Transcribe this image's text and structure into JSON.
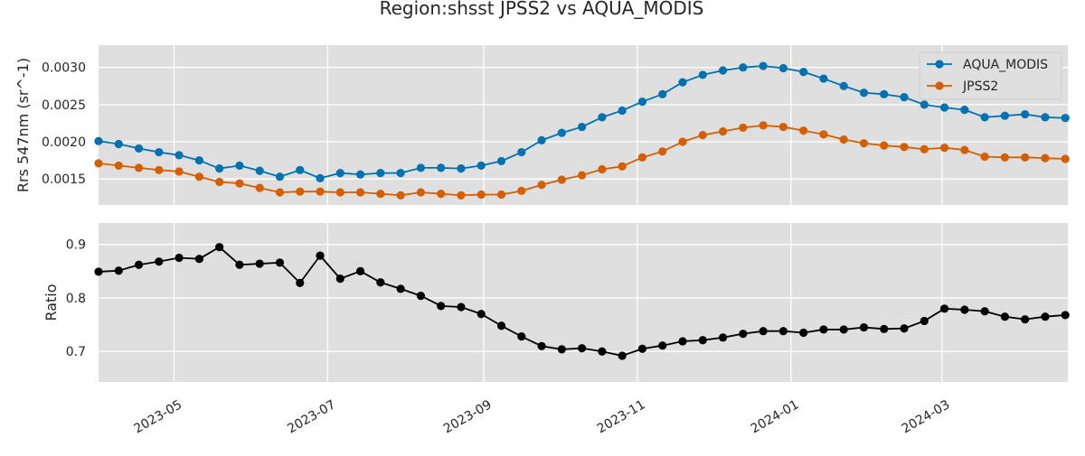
{
  "chart_data": {
    "title": "Region:shsst JPSS2 vs AQUA_MODIS",
    "grid": true,
    "shared_x": {
      "type": "date",
      "range": [
        "2023-04-01",
        "2024-04-20"
      ],
      "tick_labels": [
        "2023-05",
        "2023-07",
        "2023-09",
        "2023-11",
        "2024-01",
        "2024-03"
      ],
      "tick_dates": [
        "2023-05-01",
        "2023-07-01",
        "2023-09-01",
        "2023-11-01",
        "2024-01-01",
        "2024-03-01"
      ]
    },
    "dates": [
      "2023-04-01",
      "2023-04-09",
      "2023-04-17",
      "2023-04-25",
      "2023-05-03",
      "2023-05-11",
      "2023-05-19",
      "2023-05-27",
      "2023-06-04",
      "2023-06-12",
      "2023-06-20",
      "2023-06-28",
      "2023-07-06",
      "2023-07-14",
      "2023-07-22",
      "2023-07-30",
      "2023-08-07",
      "2023-08-15",
      "2023-08-23",
      "2023-08-31",
      "2023-09-08",
      "2023-09-16",
      "2023-09-24",
      "2023-10-02",
      "2023-10-10",
      "2023-10-18",
      "2023-10-26",
      "2023-11-03",
      "2023-11-11",
      "2023-11-19",
      "2023-11-27",
      "2023-12-05",
      "2023-12-13",
      "2023-12-21",
      "2023-12-29",
      "2024-01-06",
      "2024-01-14",
      "2024-01-22",
      "2024-01-30",
      "2024-02-07",
      "2024-02-15",
      "2024-02-23",
      "2024-03-02",
      "2024-03-10",
      "2024-03-18",
      "2024-03-26",
      "2024-04-03",
      "2024-04-11",
      "2024-04-19"
    ],
    "panels": [
      {
        "type": "line",
        "ylabel": "Rrs 547nm (sr^-1)",
        "ylim": [
          0.00115,
          0.0033
        ],
        "yticks": [
          0.0015,
          0.002,
          0.0025,
          0.003
        ],
        "ytick_labels": [
          "0.0015",
          "0.0020",
          "0.0025",
          "0.0030"
        ],
        "legend_position": "top-right",
        "series": [
          {
            "name": "AQUA_MODIS",
            "color": "#0072b2",
            "values": [
              0.00201,
              0.00197,
              0.00191,
              0.00186,
              0.00182,
              0.00175,
              0.00164,
              0.00168,
              0.00161,
              0.00153,
              0.00162,
              0.00151,
              0.00158,
              0.00156,
              0.00158,
              0.00158,
              0.00165,
              0.00165,
              0.00164,
              0.00168,
              0.00174,
              0.00186,
              0.00202,
              0.00212,
              0.0022,
              0.00233,
              0.00242,
              0.00254,
              0.00264,
              0.0028,
              0.0029,
              0.00296,
              0.003,
              0.00302,
              0.00299,
              0.00294,
              0.00285,
              0.00275,
              0.00266,
              0.00264,
              0.0026,
              0.0025,
              0.00246,
              0.00243,
              0.00233,
              0.00235,
              0.00237,
              0.00233,
              0.00232
            ]
          },
          {
            "name": "JPSS2",
            "color": "#d55e00",
            "values": [
              0.00171,
              0.00168,
              0.00165,
              0.00162,
              0.0016,
              0.00153,
              0.00146,
              0.00144,
              0.00138,
              0.00132,
              0.00133,
              0.00133,
              0.00132,
              0.00132,
              0.0013,
              0.00128,
              0.00132,
              0.0013,
              0.00128,
              0.00129,
              0.00129,
              0.00134,
              0.00142,
              0.00149,
              0.00155,
              0.00163,
              0.00167,
              0.00179,
              0.00187,
              0.002,
              0.00209,
              0.00214,
              0.00219,
              0.00222,
              0.0022,
              0.00215,
              0.0021,
              0.00203,
              0.00198,
              0.00195,
              0.00193,
              0.0019,
              0.00192,
              0.00189,
              0.0018,
              0.00179,
              0.00179,
              0.00178,
              0.00177
            ]
          }
        ]
      },
      {
        "type": "line",
        "ylabel": "Ratio",
        "ylim": [
          0.643,
          0.94
        ],
        "yticks": [
          0.7,
          0.8,
          0.9
        ],
        "ytick_labels": [
          "0.7",
          "0.8",
          "0.9"
        ],
        "series": [
          {
            "color": "#000000",
            "values": [
              0.849,
              0.851,
              0.862,
              0.868,
              0.875,
              0.873,
              0.895,
              0.862,
              0.864,
              0.866,
              0.828,
              0.879,
              0.836,
              0.85,
              0.829,
              0.817,
              0.804,
              0.785,
              0.783,
              0.77,
              0.748,
              0.728,
              0.71,
              0.704,
              0.706,
              0.7,
              0.692,
              0.705,
              0.711,
              0.719,
              0.721,
              0.726,
              0.733,
              0.738,
              0.738,
              0.735,
              0.741,
              0.741,
              0.745,
              0.742,
              0.743,
              0.757,
              0.78,
              0.778,
              0.775,
              0.765,
              0.76,
              0.765,
              0.768
            ]
          }
        ]
      }
    ]
  }
}
